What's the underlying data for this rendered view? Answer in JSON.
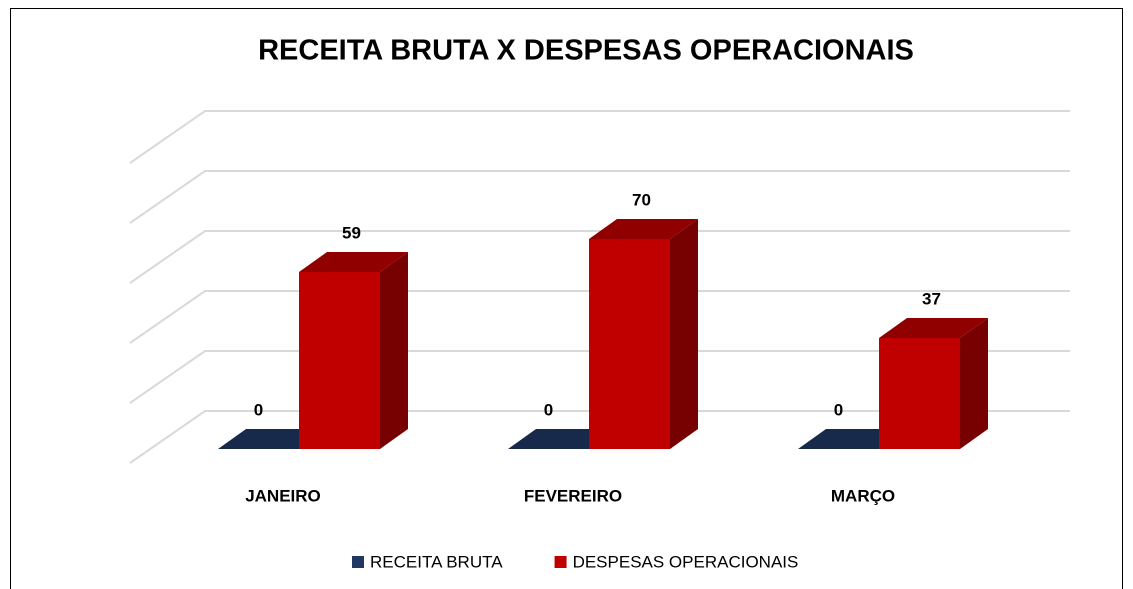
{
  "chart_data": {
    "type": "bar3d",
    "title": "RECEITA BRUTA X DESPESAS OPERACIONAIS",
    "categories": [
      "JANEIRO",
      "FEVEREIRO",
      "MARÇO"
    ],
    "series": [
      {
        "name": "RECEITA BRUTA",
        "color": "#1f3864",
        "values": [
          0,
          0,
          0
        ]
      },
      {
        "name": "DESPESAS OPERACIONAIS",
        "color": "#c00000",
        "values": [
          59,
          70,
          37
        ]
      }
    ],
    "ylim": [
      0,
      100
    ],
    "yticks": [
      0,
      20,
      40,
      60,
      80,
      100
    ],
    "grid": true,
    "legend": "bottom"
  }
}
